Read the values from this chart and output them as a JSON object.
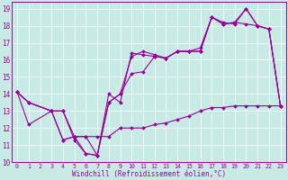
{
  "xlabel": "Windchill (Refroidissement éolien,°C)",
  "bg_color": "#c8eae4",
  "line_color": "#990099",
  "xlim": [
    -0.5,
    23.5
  ],
  "ylim": [
    10,
    19.4
  ],
  "xticks": [
    0,
    1,
    2,
    3,
    4,
    5,
    6,
    7,
    8,
    9,
    10,
    11,
    12,
    13,
    14,
    15,
    16,
    17,
    18,
    19,
    20,
    21,
    22,
    23
  ],
  "yticks": [
    10,
    11,
    12,
    13,
    14,
    15,
    16,
    17,
    18,
    19
  ],
  "lines": [
    {
      "x": [
        0,
        1,
        3,
        4,
        5,
        6,
        7,
        8,
        9,
        10,
        11,
        12,
        13,
        14,
        15,
        16,
        17,
        18,
        19,
        20,
        21,
        22,
        23
      ],
      "y": [
        14.1,
        13.5,
        13.0,
        13.0,
        11.3,
        10.5,
        10.4,
        14.0,
        13.5,
        16.4,
        16.3,
        16.2,
        16.1,
        16.5,
        16.5,
        16.5,
        18.5,
        18.2,
        18.1,
        19.0,
        18.0,
        17.8,
        13.3
      ]
    },
    {
      "x": [
        0,
        1,
        3,
        4,
        5,
        6,
        7,
        8,
        9,
        10,
        11,
        12,
        13,
        14,
        15,
        16,
        17,
        18,
        19,
        20,
        21,
        22,
        23
      ],
      "y": [
        14.1,
        12.2,
        13.0,
        11.3,
        11.5,
        10.5,
        10.4,
        13.5,
        14.0,
        16.2,
        16.5,
        16.3,
        16.1,
        16.5,
        16.5,
        16.5,
        18.5,
        18.1,
        18.2,
        18.1,
        18.0,
        17.8,
        13.3
      ]
    },
    {
      "x": [
        0,
        1,
        3,
        4,
        5,
        6,
        7,
        8,
        9,
        10,
        11,
        12,
        13,
        14,
        15,
        16,
        17,
        18,
        19,
        20,
        21,
        22,
        23
      ],
      "y": [
        14.1,
        13.5,
        13.0,
        11.3,
        11.5,
        11.5,
        10.4,
        13.5,
        14.0,
        15.2,
        15.3,
        16.2,
        16.1,
        16.5,
        16.5,
        16.7,
        18.5,
        18.1,
        18.2,
        19.0,
        18.0,
        17.8,
        13.3
      ]
    },
    {
      "x": [
        0,
        1,
        3,
        4,
        5,
        6,
        7,
        8,
        9,
        10,
        11,
        12,
        13,
        14,
        15,
        16,
        17,
        18,
        19,
        20,
        21,
        22,
        23
      ],
      "y": [
        14.1,
        13.5,
        13.0,
        13.0,
        11.5,
        11.5,
        11.5,
        11.5,
        12.0,
        12.0,
        12.0,
        12.2,
        12.3,
        12.5,
        12.7,
        13.0,
        13.2,
        13.2,
        13.3,
        13.3,
        13.3,
        13.3,
        13.3
      ]
    }
  ]
}
